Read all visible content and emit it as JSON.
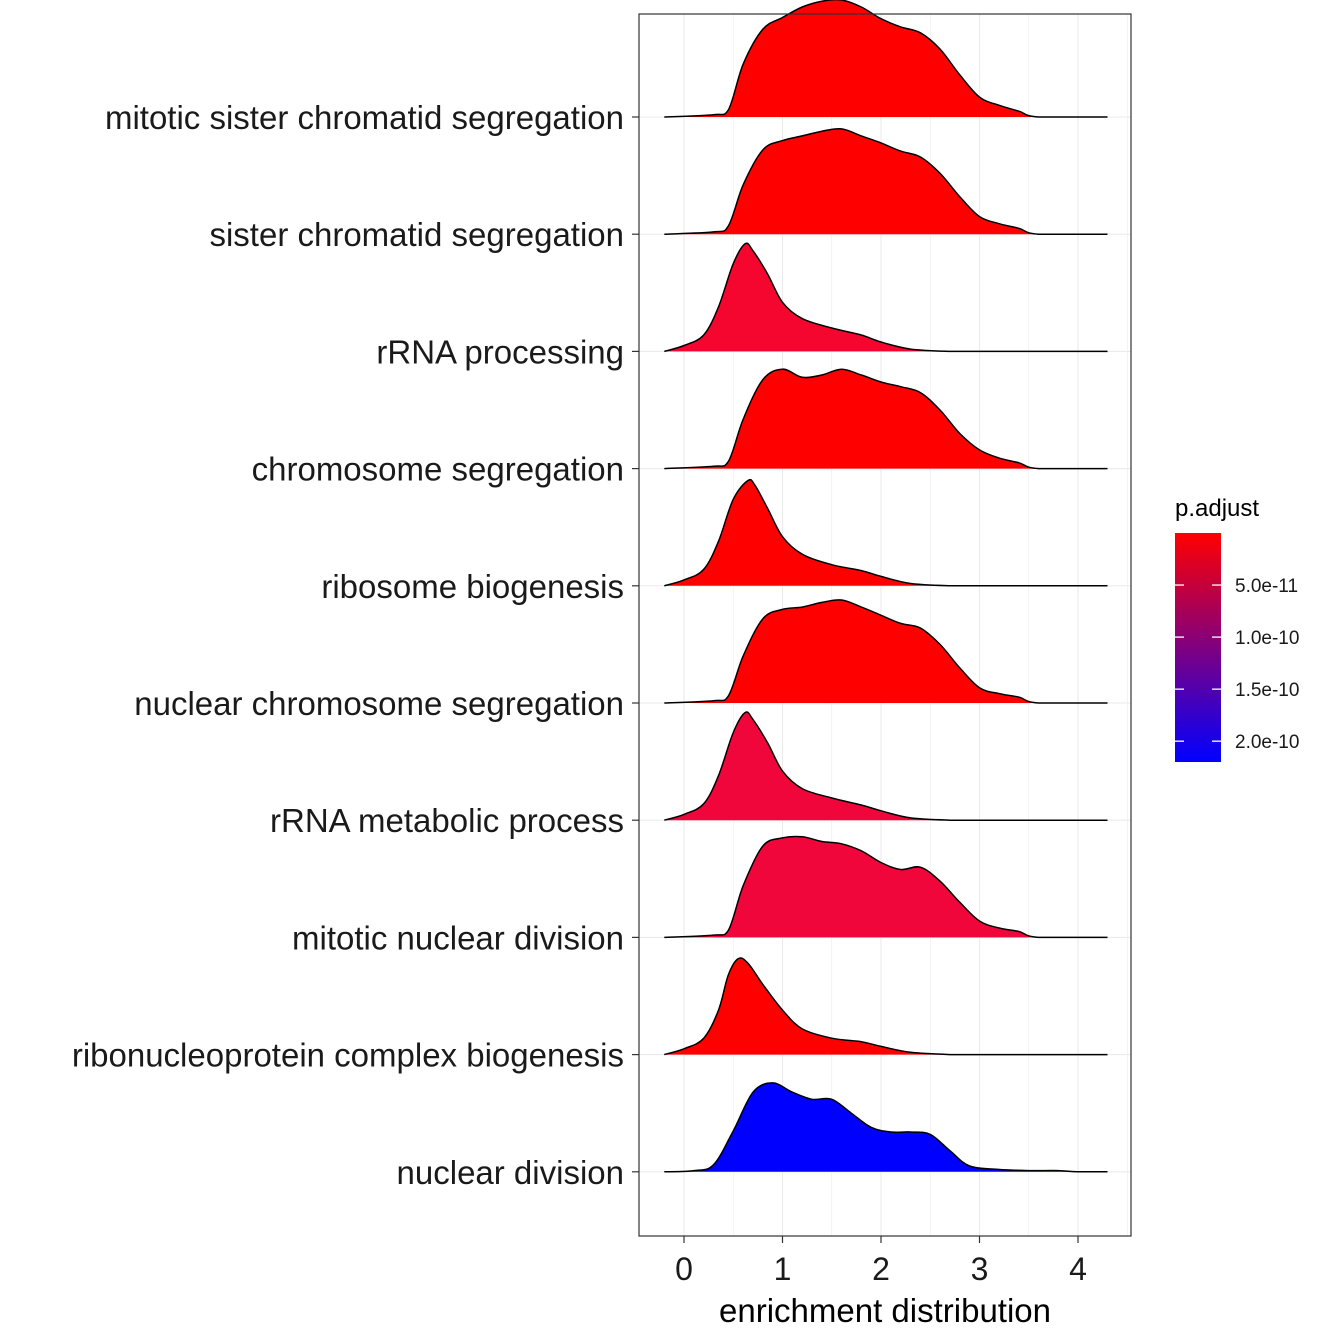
{
  "chart_data": {
    "type": "ridgeline",
    "xlabel": "enrichment distribution",
    "ylabel": "",
    "xlim": [
      -0.45,
      4.55
    ],
    "x_ticks": [
      0,
      1,
      2,
      3,
      4
    ],
    "grid": "on",
    "legend": {
      "title": "p.adjust",
      "placement": "right",
      "low_color": "#FF0000",
      "high_color": "#0000FF",
      "range": [
        0,
        2.2e-10
      ],
      "ticks": [
        {
          "value": 5e-11,
          "label": "5.0e-11"
        },
        {
          "value": 1e-10,
          "label": "1.0e-10"
        },
        {
          "value": 1.5e-10,
          "label": "1.5e-10"
        },
        {
          "value": 2e-10,
          "label": "2.0e-10"
        }
      ]
    },
    "series": [
      {
        "name": "mitotic sister chromatid segregation",
        "fill": "#FF0000",
        "p_adjust": 1e-12,
        "x": [
          -0.2,
          0.3,
          0.45,
          0.6,
          0.8,
          1.0,
          1.2,
          1.4,
          1.6,
          1.8,
          2.0,
          2.2,
          2.4,
          2.6,
          2.8,
          3.0,
          3.2,
          3.4,
          3.6,
          4.3
        ],
        "y": [
          0.0,
          0.02,
          0.06,
          0.45,
          0.75,
          0.85,
          0.94,
          0.99,
          1.0,
          0.94,
          0.84,
          0.77,
          0.72,
          0.58,
          0.36,
          0.17,
          0.1,
          0.05,
          0.0,
          0.0
        ]
      },
      {
        "name": "sister chromatid segregation",
        "fill": "#FF0000",
        "p_adjust": 1e-12,
        "x": [
          -0.2,
          0.3,
          0.45,
          0.6,
          0.8,
          1.0,
          1.2,
          1.4,
          1.6,
          1.8,
          2.0,
          2.2,
          2.4,
          2.6,
          2.8,
          3.0,
          3.2,
          3.4,
          3.6,
          4.3
        ],
        "y": [
          0.0,
          0.02,
          0.07,
          0.42,
          0.72,
          0.8,
          0.84,
          0.88,
          0.9,
          0.84,
          0.78,
          0.71,
          0.66,
          0.52,
          0.32,
          0.15,
          0.09,
          0.05,
          0.0,
          0.0
        ]
      },
      {
        "name": "rRNA processing",
        "fill": "#F5062E",
        "p_adjust": 2e-11,
        "x": [
          -0.2,
          0.0,
          0.2,
          0.35,
          0.5,
          0.62,
          0.7,
          0.85,
          1.0,
          1.2,
          1.5,
          1.8,
          2.0,
          2.3,
          2.7,
          3.0,
          4.3
        ],
        "y": [
          0.0,
          0.05,
          0.14,
          0.38,
          0.75,
          0.92,
          0.86,
          0.66,
          0.42,
          0.28,
          0.2,
          0.14,
          0.08,
          0.02,
          0.0,
          0.0,
          0.0
        ]
      },
      {
        "name": "chromosome segregation",
        "fill": "#FF0000",
        "p_adjust": 1e-12,
        "x": [
          -0.2,
          0.3,
          0.45,
          0.6,
          0.8,
          1.0,
          1.2,
          1.4,
          1.6,
          1.8,
          2.0,
          2.2,
          2.4,
          2.6,
          2.8,
          3.0,
          3.2,
          3.4,
          3.6,
          4.3
        ],
        "y": [
          0.0,
          0.02,
          0.06,
          0.42,
          0.76,
          0.85,
          0.78,
          0.8,
          0.85,
          0.8,
          0.74,
          0.7,
          0.65,
          0.5,
          0.3,
          0.16,
          0.09,
          0.05,
          0.0,
          0.0
        ]
      },
      {
        "name": "ribosome biogenesis",
        "fill": "#FF0000",
        "p_adjust": 1e-12,
        "x": [
          -0.2,
          0.0,
          0.2,
          0.35,
          0.5,
          0.65,
          0.72,
          0.85,
          1.0,
          1.2,
          1.5,
          1.8,
          2.0,
          2.3,
          2.7,
          3.0,
          4.3
        ],
        "y": [
          0.0,
          0.05,
          0.14,
          0.38,
          0.74,
          0.9,
          0.86,
          0.66,
          0.42,
          0.27,
          0.18,
          0.13,
          0.08,
          0.02,
          0.0,
          0.0,
          0.0
        ]
      },
      {
        "name": "nuclear chromosome segregation",
        "fill": "#FF0000",
        "p_adjust": 1e-12,
        "x": [
          -0.2,
          0.3,
          0.45,
          0.6,
          0.8,
          1.0,
          1.2,
          1.4,
          1.6,
          1.8,
          2.0,
          2.2,
          2.4,
          2.6,
          2.8,
          3.0,
          3.2,
          3.4,
          3.6,
          4.3
        ],
        "y": [
          0.0,
          0.02,
          0.06,
          0.4,
          0.72,
          0.8,
          0.82,
          0.86,
          0.88,
          0.82,
          0.75,
          0.68,
          0.64,
          0.5,
          0.3,
          0.13,
          0.08,
          0.05,
          0.0,
          0.0
        ]
      },
      {
        "name": "rRNA metabolic process",
        "fill": "#F0063A",
        "p_adjust": 2.5e-11,
        "x": [
          -0.2,
          0.0,
          0.2,
          0.35,
          0.5,
          0.62,
          0.7,
          0.85,
          1.0,
          1.2,
          1.5,
          1.8,
          2.0,
          2.3,
          2.7,
          3.0,
          4.3
        ],
        "y": [
          0.0,
          0.05,
          0.14,
          0.38,
          0.75,
          0.92,
          0.86,
          0.66,
          0.42,
          0.27,
          0.19,
          0.13,
          0.08,
          0.02,
          0.0,
          0.0,
          0.0
        ]
      },
      {
        "name": "mitotic nuclear division",
        "fill": "#F0063A",
        "p_adjust": 2.5e-11,
        "x": [
          -0.2,
          0.3,
          0.45,
          0.6,
          0.8,
          1.0,
          1.2,
          1.4,
          1.6,
          1.8,
          2.0,
          2.2,
          2.4,
          2.6,
          2.8,
          3.0,
          3.2,
          3.4,
          3.6,
          4.3
        ],
        "y": [
          0.0,
          0.02,
          0.06,
          0.44,
          0.78,
          0.85,
          0.86,
          0.82,
          0.8,
          0.74,
          0.64,
          0.58,
          0.6,
          0.48,
          0.3,
          0.14,
          0.08,
          0.05,
          0.0,
          0.0
        ]
      },
      {
        "name": "ribonucleoprotein complex biogenesis",
        "fill": "#FF0000",
        "p_adjust": 1e-12,
        "x": [
          -0.2,
          0.0,
          0.2,
          0.35,
          0.45,
          0.55,
          0.65,
          0.8,
          1.0,
          1.2,
          1.5,
          1.8,
          2.0,
          2.3,
          2.7,
          3.0,
          4.3
        ],
        "y": [
          0.0,
          0.05,
          0.14,
          0.38,
          0.68,
          0.82,
          0.78,
          0.6,
          0.38,
          0.22,
          0.14,
          0.11,
          0.07,
          0.02,
          0.0,
          0.0,
          0.0
        ]
      },
      {
        "name": "nuclear division",
        "fill": "#0000FF",
        "p_adjust": 2.2e-10,
        "x": [
          -0.2,
          0.1,
          0.3,
          0.5,
          0.7,
          0.9,
          1.1,
          1.3,
          1.5,
          1.7,
          1.9,
          2.1,
          2.3,
          2.5,
          2.7,
          2.9,
          3.2,
          3.5,
          3.8,
          4.0,
          4.3
        ],
        "y": [
          0.0,
          0.01,
          0.06,
          0.35,
          0.68,
          0.76,
          0.68,
          0.62,
          0.62,
          0.5,
          0.38,
          0.34,
          0.34,
          0.32,
          0.18,
          0.05,
          0.02,
          0.01,
          0.01,
          0.0,
          0.0
        ]
      }
    ]
  }
}
